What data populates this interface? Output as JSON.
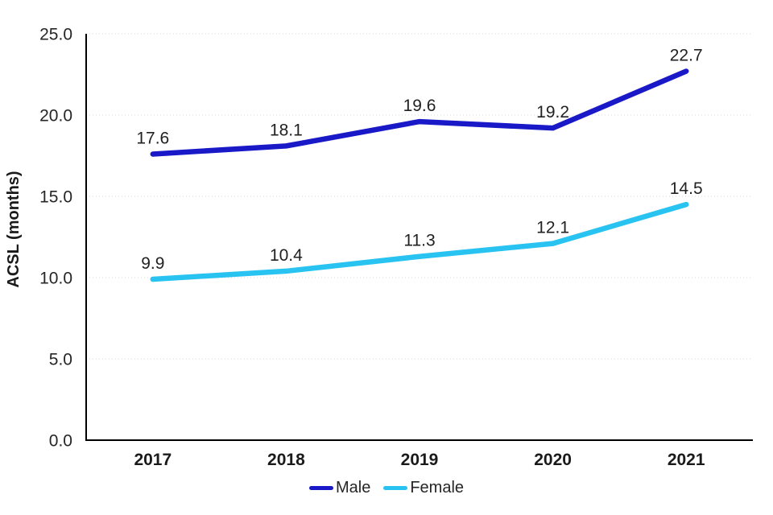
{
  "chart_data": {
    "type": "line",
    "title": "",
    "xlabel": "",
    "ylabel": "ACSL (months)",
    "categories": [
      "2017",
      "2018",
      "2019",
      "2020",
      "2021"
    ],
    "series": [
      {
        "name": "Male",
        "color": "#1919C8",
        "values": [
          17.6,
          18.1,
          19.6,
          19.2,
          22.7
        ]
      },
      {
        "name": "Female",
        "color": "#29C3F1",
        "values": [
          9.9,
          10.4,
          11.3,
          12.1,
          14.5
        ]
      }
    ],
    "ylim": [
      0,
      25
    ],
    "yticks": [
      0,
      5,
      10,
      15,
      20,
      25
    ],
    "ytick_labels": [
      "0.0",
      "5.0",
      "10.0",
      "15.0",
      "20.0",
      "25.0"
    ],
    "grid": "horizontal-dotted",
    "gridline_color": "#d9d9d9",
    "axis_color": "#000000",
    "data_labels": true,
    "legend_position": "bottom-center"
  }
}
